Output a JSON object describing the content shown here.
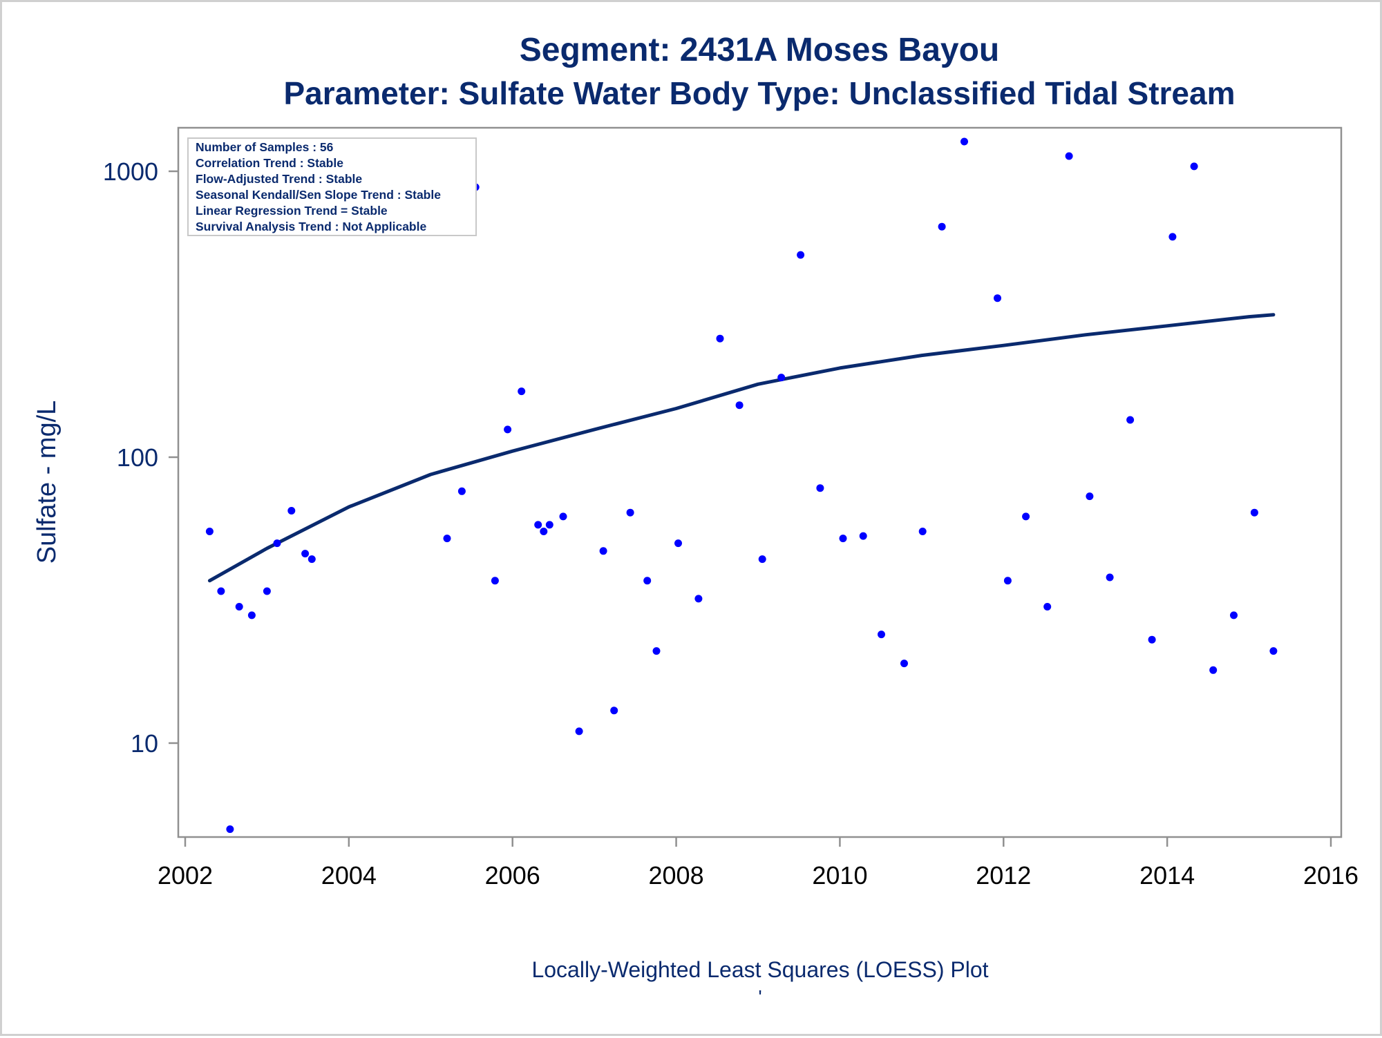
{
  "chart_data": {
    "type": "scatter",
    "title": "Segment: 2431A  Moses Bayou",
    "subtitle": "Parameter: Sulfate   Water Body Type: Unclassified Tidal Stream",
    "xlabel": "",
    "ylabel": "Sulfate - mg/L",
    "footnote": "Locally-Weighted Least Squares (LOESS) Plot",
    "footnote_mark": "'",
    "yscale": "log",
    "xlim": [
      2002,
      2016
    ],
    "ylim": [
      5,
      1400
    ],
    "x_ticks": [
      "2002",
      "2004",
      "2006",
      "2008",
      "2010",
      "2012",
      "2014",
      "2016"
    ],
    "y_ticks": [
      "10",
      "100",
      "1000"
    ],
    "grid": false,
    "colors": {
      "points": "#0000ff",
      "trend": "#0a2a6e",
      "text": "#0a2a6e",
      "frame": "#909090"
    },
    "info_box": {
      "placement": "top-left",
      "lines": [
        "Number of Samples : 56",
        "Correlation Trend : Stable",
        "Flow-Adjusted Trend : Stable",
        "Seasonal Kendall/Sen Slope Trend : Stable",
        "Linear Regression Trend = Stable",
        "Survival Analysis Trend : Not Applicable"
      ]
    },
    "series": [
      {
        "kind": "points",
        "x": [
          "2002-04-20",
          "2002-06-10",
          "2002-07-20",
          "2002-08-30",
          "2002-10-25",
          "2003-01-01",
          "2003-02-15",
          "2003-04-20",
          "2003-06-20",
          "2003-07-20",
          "2005-03-15",
          "2005-05-20",
          "2005-07-20",
          "2005-10-15",
          "2005-12-10",
          "2006-02-10",
          "2006-04-25",
          "2006-05-20",
          "2006-06-15",
          "2006-08-15",
          "2006-10-25",
          "2007-02-10",
          "2007-03-30",
          "2007-06-10",
          "2007-08-25",
          "2007-10-05",
          "2008-01-10",
          "2008-04-10",
          "2008-07-15",
          "2008-10-10",
          "2009-01-20",
          "2009-04-15",
          "2009-07-10",
          "2009-10-05",
          "2010-01-15",
          "2010-04-15",
          "2010-07-05",
          "2010-10-15",
          "2011-01-05",
          "2011-04-01",
          "2011-07-10",
          "2011-12-05",
          "2012-01-20",
          "2012-04-10",
          "2012-07-15",
          "2012-10-20",
          "2013-01-20",
          "2013-04-20",
          "2013-07-20",
          "2013-10-25",
          "2014-01-25",
          "2014-05-01",
          "2014-07-25",
          "2014-10-25",
          "2015-01-25",
          "2015-04-20"
        ],
        "y": [
          55,
          34,
          5,
          30,
          28,
          34,
          50,
          65,
          46,
          44,
          52,
          76,
          880,
          37,
          125,
          170,
          58,
          55,
          58,
          62,
          11,
          47,
          13,
          64,
          37,
          21,
          50,
          32,
          260,
          152,
          44,
          190,
          510,
          78,
          52,
          53,
          24,
          19,
          55,
          640,
          1270,
          360,
          37,
          62,
          30,
          1130,
          73,
          38,
          135,
          23,
          590,
          1040,
          18,
          28,
          64,
          21
        ]
      },
      {
        "kind": "loess",
        "x": [
          "2002-04-20",
          "2003-01-01",
          "2004-01-01",
          "2005-01-01",
          "2006-01-01",
          "2007-01-01",
          "2008-01-01",
          "2009-01-01",
          "2010-01-01",
          "2011-01-01",
          "2012-01-01",
          "2013-01-01",
          "2014-01-01",
          "2015-01-01",
          "2015-04-20"
        ],
        "y": [
          37,
          48,
          67,
          87,
          105,
          125,
          148,
          180,
          205,
          227,
          246,
          268,
          288,
          310,
          315
        ]
      }
    ]
  }
}
